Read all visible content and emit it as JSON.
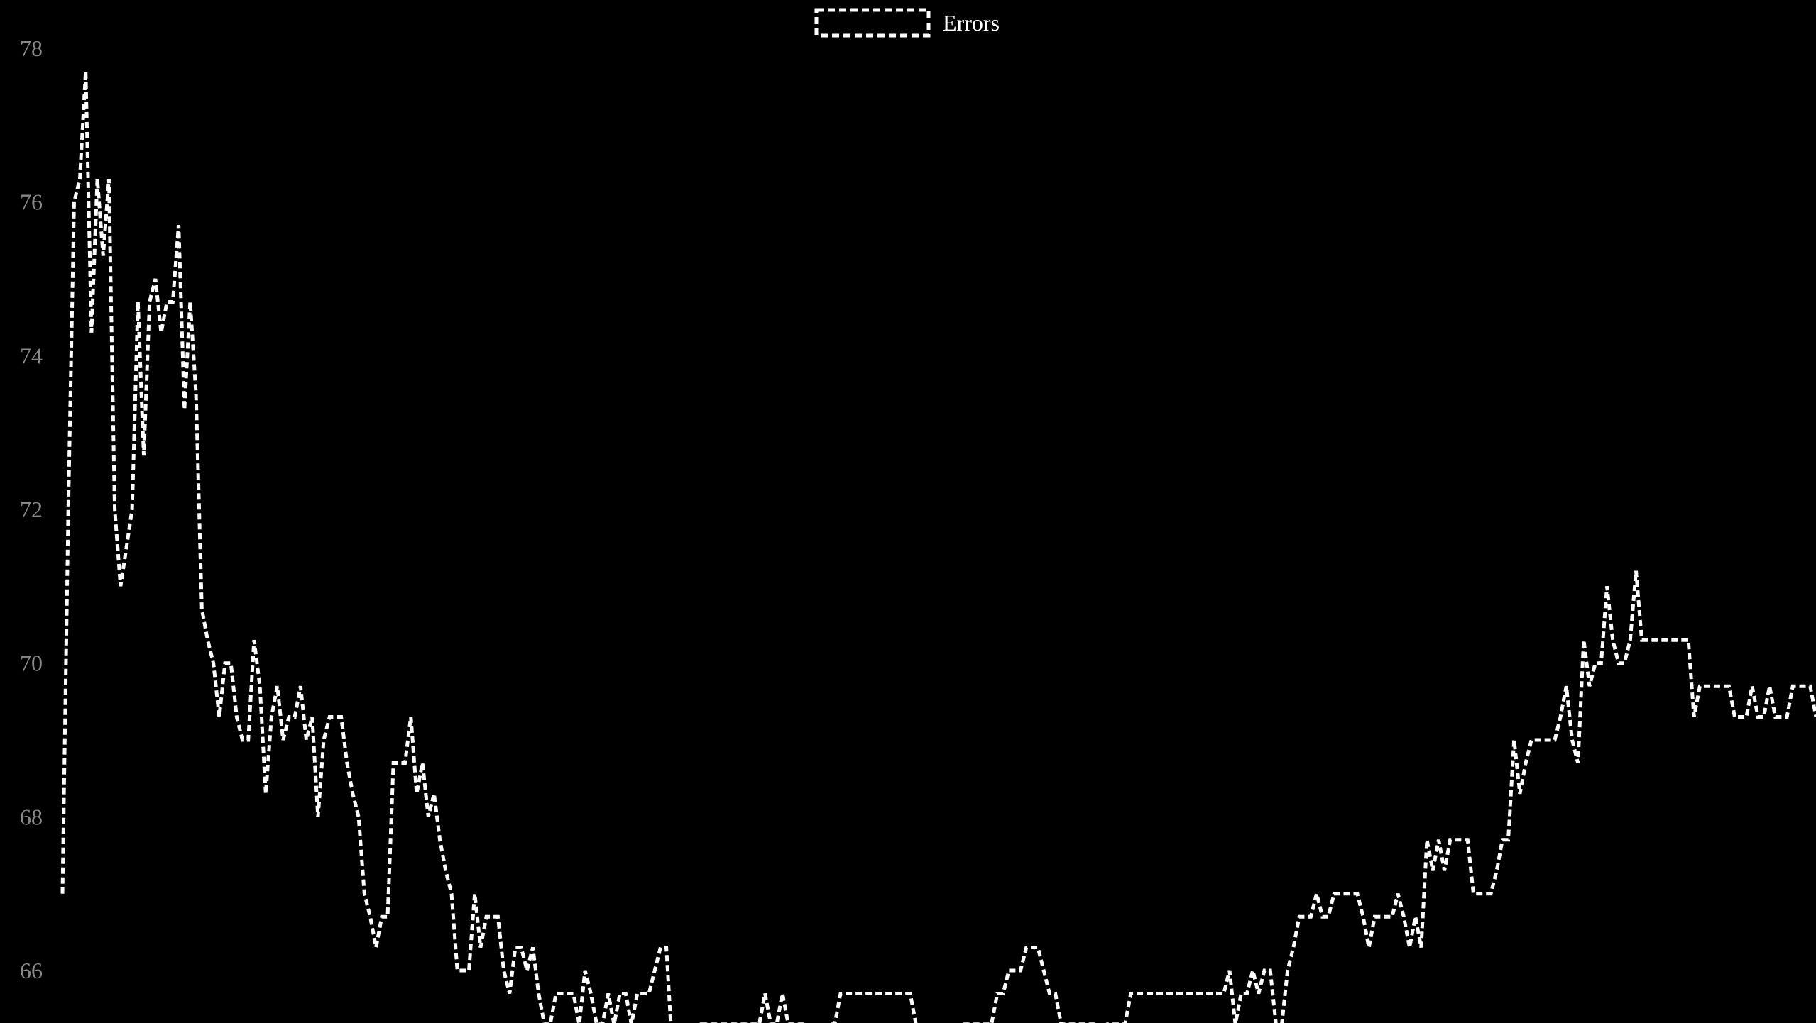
{
  "chart_data": {
    "type": "line",
    "title": "",
    "xlabel": "",
    "ylabel": "",
    "ylim": [
      65.35,
      78.5
    ],
    "yticks": [
      66,
      68,
      70,
      72,
      74,
      76,
      78
    ],
    "legend": "top-center",
    "grid": false,
    "x_axis_visible": false,
    "background": "#000000",
    "tick_color": "#888888",
    "series": [
      {
        "name": "Errors",
        "color": "#ffffff",
        "line_style": "dashed",
        "values": [
          67.0,
          72.0,
          76.0,
          76.3,
          77.7,
          74.3,
          76.3,
          75.3,
          76.3,
          72.0,
          71.0,
          71.5,
          72.0,
          74.7,
          72.7,
          74.7,
          75.0,
          74.3,
          74.7,
          74.7,
          75.7,
          73.3,
          74.7,
          73.5,
          70.7,
          70.3,
          70.0,
          69.3,
          70.0,
          70.0,
          69.3,
          69.0,
          69.0,
          70.3,
          69.7,
          68.3,
          69.3,
          69.7,
          69.0,
          69.3,
          69.3,
          69.7,
          69.0,
          69.3,
          68.0,
          69.0,
          69.3,
          69.3,
          69.3,
          68.7,
          68.3,
          68.0,
          67.0,
          66.7,
          66.3,
          66.7,
          66.7,
          68.7,
          68.7,
          68.7,
          69.3,
          68.3,
          68.7,
          68.0,
          68.3,
          67.7,
          67.3,
          67.0,
          66.0,
          66.0,
          66.0,
          67.0,
          66.3,
          66.7,
          66.7,
          66.7,
          66.0,
          65.7,
          66.3,
          66.3,
          66.0,
          66.3,
          65.7,
          65.3,
          65.3,
          65.7,
          65.7,
          65.7,
          65.7,
          65.3,
          66.0,
          65.7,
          65.3,
          65.3,
          65.7,
          65.3,
          65.7,
          65.7,
          65.3,
          65.7,
          65.7,
          65.7,
          66.0,
          66.3,
          66.3,
          65.0,
          65.0,
          65.0,
          65.0,
          65.0,
          65.3,
          65.3,
          65.3,
          65.3,
          65.3,
          65.3,
          65.3,
          65.3,
          65.3,
          65.3,
          65.3,
          65.7,
          65.3,
          65.3,
          65.7,
          65.3,
          65.3,
          65.3,
          65.3,
          65.0,
          65.0,
          65.0,
          65.3,
          65.3,
          65.7,
          65.7,
          65.7,
          65.7,
          65.7,
          65.7,
          65.7,
          65.7,
          65.7,
          65.7,
          65.7,
          65.7,
          65.7,
          65.3,
          65.0,
          65.0,
          65.0,
          65.0,
          65.0,
          65.0,
          65.0,
          65.3,
          65.3,
          65.3,
          65.3,
          65.3,
          65.3,
          65.7,
          65.7,
          66.0,
          66.0,
          66.0,
          66.3,
          66.3,
          66.3,
          66.0,
          65.7,
          65.7,
          65.3,
          65.3,
          65.3,
          65.3,
          65.3,
          65.3,
          65.3,
          65.0,
          65.3,
          65.3,
          65.3,
          65.3,
          65.7,
          65.7,
          65.7,
          65.7,
          65.7,
          65.7,
          65.7,
          65.7,
          65.7,
          65.7,
          65.7,
          65.7,
          65.7,
          65.7,
          65.7,
          65.7,
          65.7,
          66.0,
          65.3,
          65.7,
          65.7,
          66.0,
          65.7,
          66.0,
          66.0,
          65.3,
          65.3,
          66.0,
          66.3,
          66.7,
          66.7,
          66.7,
          67.0,
          66.7,
          66.7,
          67.0,
          67.0,
          67.0,
          67.0,
          67.0,
          66.7,
          66.3,
          66.7,
          66.7,
          66.7,
          66.7,
          67.0,
          66.7,
          66.3,
          66.7,
          66.3,
          67.7,
          67.3,
          67.7,
          67.3,
          67.7,
          67.7,
          67.7,
          67.7,
          67.0,
          67.0,
          67.0,
          67.0,
          67.3,
          67.7,
          67.7,
          69.0,
          68.3,
          68.7,
          69.0,
          69.0,
          69.0,
          69.0,
          69.0,
          69.3,
          69.7,
          69.0,
          68.7,
          70.3,
          69.7,
          70.0,
          70.0,
          71.0,
          70.3,
          70.0,
          70.0,
          70.3,
          71.2,
          70.3,
          70.3,
          70.3,
          70.3,
          70.3,
          70.3,
          70.3,
          70.3,
          70.3,
          69.3,
          69.7,
          69.7,
          69.7,
          69.7,
          69.7,
          69.7,
          69.3,
          69.3,
          69.3,
          69.7,
          69.3,
          69.3,
          69.7,
          69.3,
          69.3,
          69.3,
          69.7,
          69.7,
          69.7,
          69.7,
          69.3
        ]
      }
    ]
  }
}
